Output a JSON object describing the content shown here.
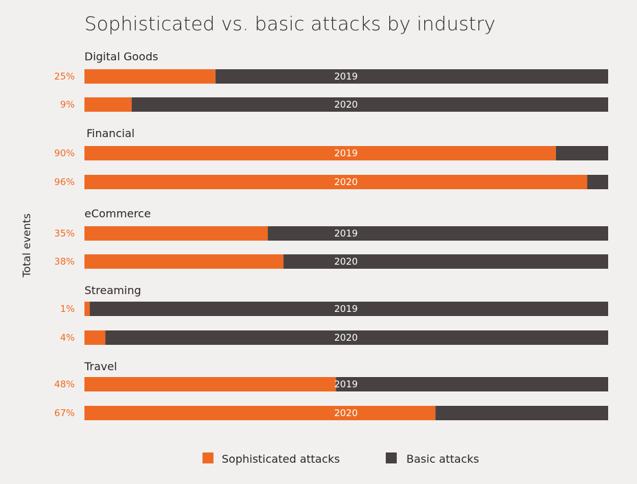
{
  "chart_data": {
    "type": "bar",
    "orientation": "horizontal-stacked-100",
    "title": "Sophisticated vs. basic attacks by industry",
    "xlabel": "",
    "ylabel": "Total events",
    "xlim": [
      0,
      100
    ],
    "grid": false,
    "legend_position": "bottom-center",
    "colors": {
      "sophisticated": "#ee6a24",
      "basic": "#474241"
    },
    "series": [
      {
        "name": "Sophisticated attacks",
        "color": "#ee6a24"
      },
      {
        "name": "Basic attacks",
        "color": "#474241"
      }
    ],
    "groups": [
      {
        "category": "Digital Goods",
        "bars": [
          {
            "year": "2019",
            "sophisticated": 25,
            "basic": 75,
            "label": "25%"
          },
          {
            "year": "2020",
            "sophisticated": 9,
            "basic": 91,
            "label": "9%"
          }
        ]
      },
      {
        "category": "Financial",
        "bars": [
          {
            "year": "2019",
            "sophisticated": 90,
            "basic": 10,
            "label": "90%"
          },
          {
            "year": "2020",
            "sophisticated": 96,
            "basic": 4,
            "label": "96%"
          }
        ]
      },
      {
        "category": "eCommerce",
        "bars": [
          {
            "year": "2019",
            "sophisticated": 35,
            "basic": 65,
            "label": "35%"
          },
          {
            "year": "2020",
            "sophisticated": 38,
            "basic": 62,
            "label": "38%"
          }
        ]
      },
      {
        "category": "Streaming",
        "bars": [
          {
            "year": "2019",
            "sophisticated": 1,
            "basic": 99,
            "label": "1%"
          },
          {
            "year": "2020",
            "sophisticated": 4,
            "basic": 96,
            "label": "4%"
          }
        ]
      },
      {
        "category": "Travel",
        "bars": [
          {
            "year": "2019",
            "sophisticated": 48,
            "basic": 52,
            "label": "48%"
          },
          {
            "year": "2020",
            "sophisticated": 67,
            "basic": 33,
            "label": "67%"
          }
        ]
      }
    ]
  }
}
